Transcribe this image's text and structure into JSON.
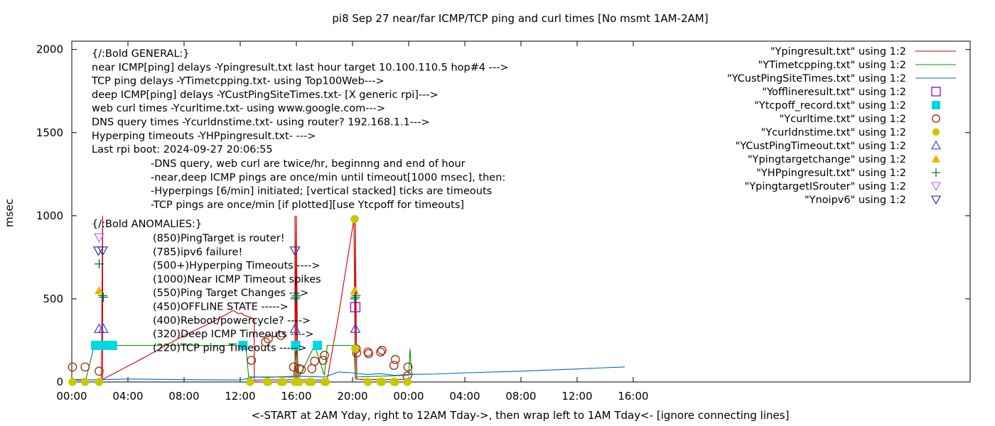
{
  "chart_data": {
    "type": "scatter",
    "title": "pi8 Sep 27  near/far ICMP/TCP ping and curl times [No msmt 1AM-2AM]",
    "xlabel": "<-START at 2AM Yday, right to 12AM Tday->, then wrap left to 1AM Tday<- [ignore connecting lines]",
    "ylabel": "msec",
    "xlim": [
      0,
      64
    ],
    "ylim": [
      0,
      2050
    ],
    "x_ticks": [
      {
        "v": 0,
        "label": "00:00"
      },
      {
        "v": 4,
        "label": "04:00"
      },
      {
        "v": 8,
        "label": "08:00"
      },
      {
        "v": 12,
        "label": "12:00"
      },
      {
        "v": 16,
        "label": "16:00"
      },
      {
        "v": 20,
        "label": "20:00"
      },
      {
        "v": 24,
        "label": "00:00"
      },
      {
        "v": 28,
        "label": "04:00"
      },
      {
        "v": 32,
        "label": "08:00"
      },
      {
        "v": 36,
        "label": "12:00"
      },
      {
        "v": 40,
        "label": "16:00"
      }
    ],
    "y_ticks": [
      {
        "v": 0,
        "label": "0"
      },
      {
        "v": 500,
        "label": "500"
      },
      {
        "v": 1000,
        "label": "1000"
      },
      {
        "v": 1500,
        "label": "1500"
      },
      {
        "v": 2000,
        "label": "2000"
      }
    ],
    "legend_position": "top-right",
    "series": [
      {
        "name": "\"Ypingresult.txt\" using 1:2",
        "style": "line",
        "color": "#cc0000",
        "x": [
          0,
          2.1,
          2.2,
          2.2,
          2.3,
          5,
          8,
          10,
          11.5,
          11.9,
          12.1,
          12.3,
          12.7,
          13,
          13,
          14,
          15,
          15.9,
          15.9,
          16,
          16,
          16.1,
          16.3,
          17,
          18,
          18.2,
          19,
          20.1,
          20.2,
          20.2,
          20.3,
          22,
          24
        ],
        "y": [
          15,
          12,
          1000,
          10,
          20,
          140,
          280,
          360,
          430,
          410,
          415,
          400,
          390,
          380,
          10,
          14,
          12,
          14,
          1000,
          10,
          1000,
          12,
          14,
          12,
          12,
          15,
          400,
          980,
          14,
          980,
          16,
          14,
          15
        ]
      },
      {
        "name": "\"YTimetcpping.txt\" using 1:2",
        "style": "line",
        "color": "#009900",
        "x": [
          0,
          1,
          1.6,
          3,
          6,
          9,
          12,
          12.4,
          12.6,
          15.8,
          16,
          16.2,
          17.3,
          18,
          18.2,
          19,
          20.1,
          20.2,
          24,
          24.1,
          24.2,
          24.3
        ],
        "y": [
          10,
          12,
          220,
          220,
          220,
          220,
          220,
          220,
          30,
          30,
          220,
          30,
          220,
          40,
          220,
          220,
          220,
          30,
          40,
          200,
          60,
          40
        ]
      },
      {
        "name": "\"YCustPingSiteTimes.txt\" using 1:2",
        "style": "line",
        "color": "#0066dd",
        "x": [
          0,
          1,
          2,
          4,
          8,
          12,
          13,
          14,
          16,
          18,
          19,
          20,
          21,
          22,
          23,
          24,
          26,
          28,
          30,
          32,
          34,
          36,
          38,
          39.4
        ],
        "y": [
          15,
          12,
          14,
          18,
          14,
          12,
          30,
          28,
          35,
          30,
          60,
          55,
          45,
          50,
          40,
          45,
          48,
          55,
          60,
          65,
          72,
          78,
          86,
          90
        ]
      },
      {
        "name": "\"Yofflineresult.txt\" using 1:2",
        "style": "open-square",
        "color": "#9400d3",
        "x": [
          20.2
        ],
        "y": [
          450
        ]
      },
      {
        "name": "\"Ytcpoff_record.txt\" using 1:2",
        "style": "filled-square",
        "color": "#00d8e0",
        "x": [
          1.7,
          2.0,
          2.3,
          2.6,
          2.9,
          12.2,
          15.95,
          17.5
        ],
        "y": [
          220,
          220,
          220,
          220,
          220,
          220,
          220,
          220
        ]
      },
      {
        "name": "\"Ycurltime.txt\" using 1:2",
        "style": "open-circle",
        "color": "#a52a0a",
        "x": [
          0.05,
          0.95,
          1.95,
          12.8,
          13.8,
          14,
          14.9,
          15.8,
          16.2,
          16.35,
          17.1,
          17.3,
          17.9,
          18,
          20.25,
          20.3,
          21.1,
          21.15,
          22,
          22.1,
          22.95,
          23.05,
          23.9,
          23.95
        ],
        "y": [
          90,
          90,
          65,
          130,
          240,
          260,
          280,
          90,
          80,
          75,
          80,
          125,
          130,
          160,
          200,
          175,
          180,
          170,
          180,
          190,
          100,
          135,
          35,
          90
        ]
      },
      {
        "name": "\"Ycurldnstime.txt\" using 1:2",
        "style": "filled-circle",
        "color": "#c8c800",
        "x": [
          0.05,
          0.95,
          1.95,
          12.7,
          13.9,
          14,
          14.9,
          15.05,
          15.9,
          16.1,
          16.2,
          16.9,
          17.1,
          18,
          18.1,
          20.15,
          20.2,
          21.1,
          22,
          22.1,
          22.95,
          23.05,
          23.9
        ],
        "y": [
          0,
          0,
          0,
          0,
          0,
          0,
          0,
          0,
          0,
          0,
          0,
          0,
          0,
          0,
          0,
          980,
          200,
          0,
          0,
          0,
          0,
          0,
          0
        ]
      },
      {
        "name": "\"YCustPingTimeout.txt\" using 1:2",
        "style": "open-triangle-up",
        "color": "#3344cc",
        "x": [
          1.95,
          2.25,
          15.9,
          20.2
        ],
        "y": [
          320,
          320,
          320,
          320
        ]
      },
      {
        "name": "\"Ypingtargetchange\" using 1:2",
        "style": "filled-triangle-up",
        "color": "#f0b000",
        "x": [
          1.95,
          20.15
        ],
        "y": [
          550,
          550
        ]
      },
      {
        "name": "\"YHPpingresult.txt\" using 1:2",
        "style": "plus",
        "color": "#006633",
        "x": [
          1.95,
          2.2,
          2.25,
          15.9,
          15.95,
          16.0,
          20.15,
          20.2,
          20.25
        ],
        "y": [
          710,
          520,
          510,
          500,
          510,
          520,
          500,
          510,
          520
        ]
      },
      {
        "name": "\"YpingtargetISrouter\" using 1:2",
        "style": "open-triangle-down",
        "color": "#cc66ff",
        "x": [
          1.95
        ],
        "y": [
          870
        ]
      },
      {
        "name": "\"Ynoipv6\" using 1:2",
        "style": "open-triangle-down",
        "color": "#223399",
        "x": [
          1.9,
          2.2,
          15.9
        ],
        "y": [
          790,
          790,
          790
        ]
      }
    ],
    "annotations_general": [
      "{/:Bold GENERAL:}",
      "near ICMP[ping] delays -Ypingresult.txt last hour target 10.100.110.5 hop#4 --->",
      "TCP ping delays -YTimetcpping.txt- using Top100Web--->",
      "deep ICMP[ping] delays -YCustPingSiteTimes.txt- [X generic rpi]--->",
      "web curl times -Ycurltime.txt- using www.google.com--->",
      "DNS query times -Ycurldnstime.txt- using router? 192.168.1.1--->",
      "Hyperping timeouts -YHPpingresult.txt- --->",
      "Last rpi boot: 2024-09-27 20:06:55"
    ],
    "annotations_notes": [
      "-DNS query, web curl are twice/hr, beginnng and end of hour",
      "-near,deep ICMP pings are once/min until timeout[1000 msec], then:",
      "  -Hyperpings [6/min] initiated; [vertical stacked] ticks are timeouts",
      "-TCP pings are once/min [if plotted][use Ytcpoff for timeouts]"
    ],
    "annotations_anomalies_header": "{/:Bold ANOMALIES:}",
    "annotations_anomalies": [
      "(850)PingTarget is router!",
      "(785)ipv6 failure!",
      "(500+)Hyperping Timeouts ---->",
      "(1000)Near ICMP Timeout spikes",
      "(550)Ping Target Changes --->",
      "(450)OFFLINE STATE ----->",
      "(400)Reboot/powercycle? ---->",
      "(320)Deep ICMP Timeouts ---->",
      "(220)TCP ping Timeouts ----->"
    ]
  }
}
